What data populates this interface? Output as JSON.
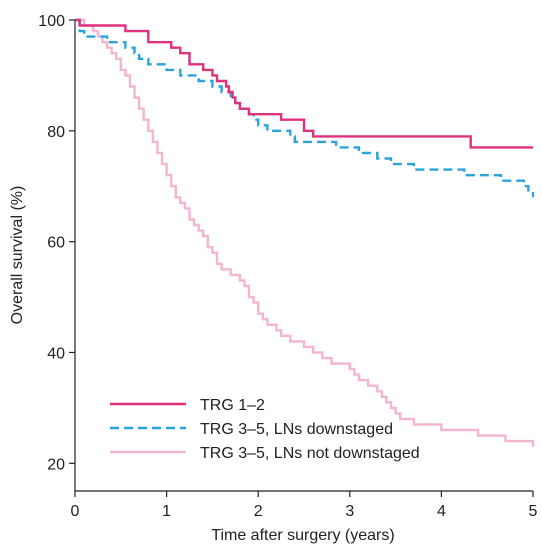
{
  "chart_data": {
    "type": "line",
    "step": true,
    "xlabel": "Time after surgery (years)",
    "ylabel": "Overall survival (%)",
    "xlim": [
      0,
      5
    ],
    "ylim": [
      15,
      100
    ],
    "x_ticks": [
      "0",
      "1",
      "2",
      "3",
      "4",
      "5"
    ],
    "y_ticks": [
      "20",
      "40",
      "60",
      "80",
      "100"
    ],
    "grid": false,
    "legend_position": "bottom-left",
    "series": [
      {
        "name": "TRG 1–2",
        "color": "#e0307e",
        "dash": "solid",
        "points": [
          [
            0,
            100
          ],
          [
            0.05,
            99
          ],
          [
            0.5,
            99
          ],
          [
            0.55,
            98
          ],
          [
            0.75,
            98
          ],
          [
            0.8,
            96
          ],
          [
            1.0,
            96
          ],
          [
            1.05,
            95
          ],
          [
            1.1,
            95
          ],
          [
            1.15,
            94
          ],
          [
            1.2,
            94
          ],
          [
            1.25,
            92
          ],
          [
            1.35,
            92
          ],
          [
            1.4,
            91
          ],
          [
            1.45,
            91
          ],
          [
            1.5,
            90
          ],
          [
            1.55,
            89
          ],
          [
            1.6,
            89
          ],
          [
            1.65,
            88
          ],
          [
            1.68,
            87
          ],
          [
            1.72,
            86
          ],
          [
            1.75,
            85
          ],
          [
            1.8,
            84
          ],
          [
            1.85,
            84
          ],
          [
            1.9,
            83
          ],
          [
            2.2,
            83
          ],
          [
            2.25,
            82
          ],
          [
            2.45,
            82
          ],
          [
            2.5,
            80
          ],
          [
            2.55,
            80
          ],
          [
            2.6,
            79
          ],
          [
            4.3,
            79
          ],
          [
            4.32,
            77
          ],
          [
            5.0,
            77
          ]
        ]
      },
      {
        "name": "TRG 3–5, LNs downstaged",
        "color": "#2aa4dc",
        "dash": "dashed",
        "points": [
          [
            0,
            100
          ],
          [
            0.05,
            98
          ],
          [
            0.1,
            97
          ],
          [
            0.3,
            97
          ],
          [
            0.35,
            96
          ],
          [
            0.5,
            96
          ],
          [
            0.55,
            95
          ],
          [
            0.6,
            95
          ],
          [
            0.65,
            94
          ],
          [
            0.7,
            93
          ],
          [
            0.75,
            93
          ],
          [
            0.8,
            92
          ],
          [
            0.95,
            92
          ],
          [
            1.0,
            91
          ],
          [
            1.1,
            91
          ],
          [
            1.15,
            90
          ],
          [
            1.3,
            90
          ],
          [
            1.35,
            89
          ],
          [
            1.45,
            89
          ],
          [
            1.5,
            88
          ],
          [
            1.6,
            87
          ],
          [
            1.7,
            86
          ],
          [
            1.75,
            85
          ],
          [
            1.8,
            84
          ],
          [
            1.9,
            83
          ],
          [
            1.95,
            82
          ],
          [
            2.0,
            81
          ],
          [
            2.1,
            80
          ],
          [
            2.3,
            80
          ],
          [
            2.35,
            79
          ],
          [
            2.4,
            78
          ],
          [
            2.8,
            78
          ],
          [
            2.85,
            77
          ],
          [
            3.05,
            77
          ],
          [
            3.1,
            76
          ],
          [
            3.25,
            76
          ],
          [
            3.3,
            75
          ],
          [
            3.4,
            75
          ],
          [
            3.45,
            74
          ],
          [
            3.65,
            74
          ],
          [
            3.7,
            73
          ],
          [
            4.2,
            73
          ],
          [
            4.25,
            72
          ],
          [
            4.6,
            72
          ],
          [
            4.65,
            71
          ],
          [
            4.85,
            71
          ],
          [
            4.9,
            70
          ],
          [
            4.95,
            69
          ],
          [
            5.0,
            68
          ]
        ]
      },
      {
        "name": "TRG 3–5, LNs not downstaged",
        "color": "#f4b6cf",
        "dash": "solid",
        "points": [
          [
            0,
            100
          ],
          [
            0.1,
            99
          ],
          [
            0.2,
            98
          ],
          [
            0.25,
            97
          ],
          [
            0.3,
            96
          ],
          [
            0.35,
            95
          ],
          [
            0.4,
            94
          ],
          [
            0.45,
            93
          ],
          [
            0.5,
            91
          ],
          [
            0.55,
            90
          ],
          [
            0.6,
            88
          ],
          [
            0.65,
            86
          ],
          [
            0.7,
            84
          ],
          [
            0.75,
            82
          ],
          [
            0.8,
            80
          ],
          [
            0.85,
            78
          ],
          [
            0.9,
            76
          ],
          [
            0.95,
            74
          ],
          [
            1.0,
            72
          ],
          [
            1.05,
            70
          ],
          [
            1.1,
            68
          ],
          [
            1.15,
            67
          ],
          [
            1.2,
            66
          ],
          [
            1.25,
            64
          ],
          [
            1.3,
            63
          ],
          [
            1.35,
            62
          ],
          [
            1.4,
            61
          ],
          [
            1.45,
            59
          ],
          [
            1.5,
            58
          ],
          [
            1.55,
            56
          ],
          [
            1.6,
            55
          ],
          [
            1.7,
            54
          ],
          [
            1.8,
            53
          ],
          [
            1.85,
            52
          ],
          [
            1.9,
            50
          ],
          [
            1.95,
            49
          ],
          [
            2.0,
            47
          ],
          [
            2.05,
            46
          ],
          [
            2.1,
            45
          ],
          [
            2.2,
            44
          ],
          [
            2.25,
            43
          ],
          [
            2.35,
            42
          ],
          [
            2.45,
            42
          ],
          [
            2.5,
            41
          ],
          [
            2.6,
            40
          ],
          [
            2.7,
            39
          ],
          [
            2.8,
            38
          ],
          [
            2.9,
            38
          ],
          [
            3.0,
            37
          ],
          [
            3.05,
            36
          ],
          [
            3.1,
            35
          ],
          [
            3.2,
            34
          ],
          [
            3.3,
            33
          ],
          [
            3.35,
            32
          ],
          [
            3.4,
            31
          ],
          [
            3.45,
            30
          ],
          [
            3.5,
            29
          ],
          [
            3.55,
            28
          ],
          [
            3.6,
            28
          ],
          [
            3.7,
            27
          ],
          [
            3.9,
            27
          ],
          [
            4.0,
            26
          ],
          [
            4.3,
            26
          ],
          [
            4.4,
            25
          ],
          [
            4.6,
            25
          ],
          [
            4.7,
            24
          ],
          [
            5.0,
            24
          ],
          [
            5.0,
            23
          ]
        ]
      }
    ]
  }
}
